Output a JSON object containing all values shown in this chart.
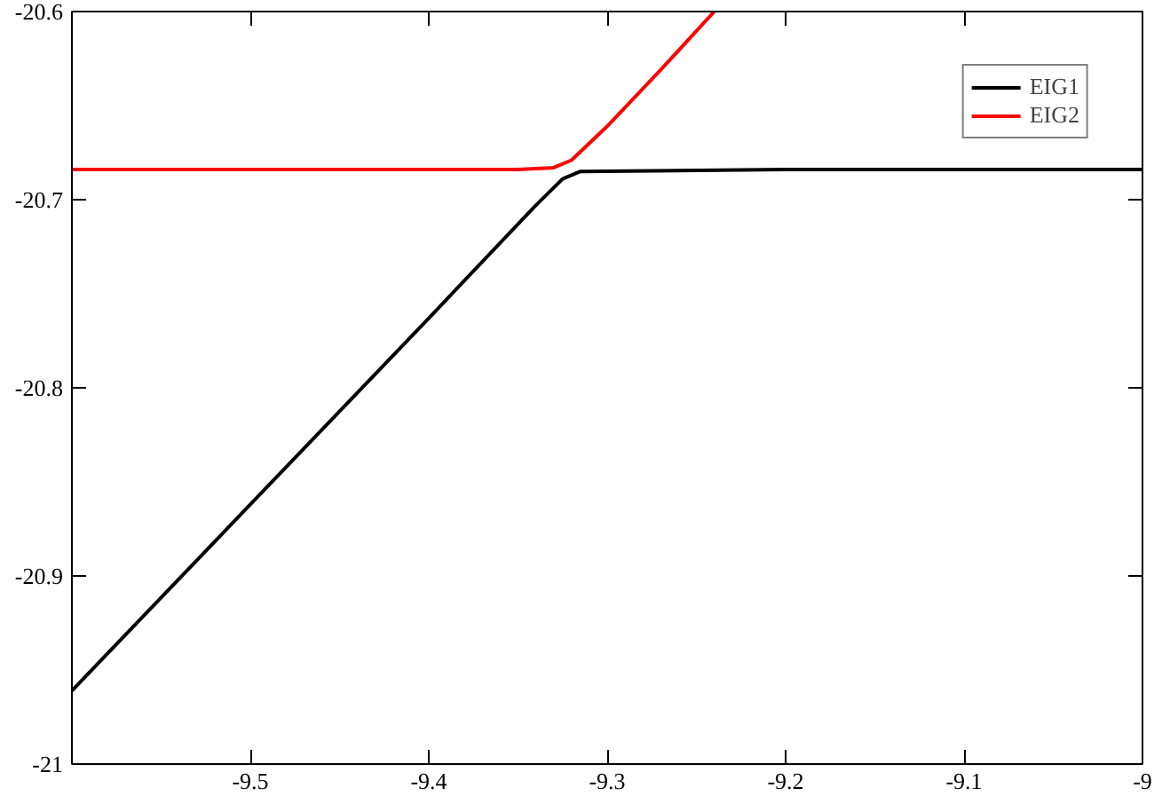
{
  "chart_data": {
    "type": "line",
    "xlim": [
      -9.6,
      -9
    ],
    "ylim": [
      -21,
      -20.6
    ],
    "xticks": [
      -9.5,
      -9.4,
      -9.3,
      -9.2,
      -9.1,
      -9
    ],
    "yticks": [
      -21,
      -20.9,
      -20.8,
      -20.7,
      -20.6
    ],
    "grid": false,
    "legend": "top right",
    "marker": "none",
    "line_style": "solid",
    "series": [
      {
        "name": "EIG1",
        "color": "#000000",
        "x": [
          -9.6,
          -9.5,
          -9.4,
          -9.34,
          -9.325,
          -9.315,
          -9.2,
          -9
        ],
        "values": [
          -20.961,
          -20.862,
          -20.763,
          -20.703,
          -20.689,
          -20.685,
          -20.684,
          -20.684
        ]
      },
      {
        "name": "EIG2",
        "color": "#ff0000",
        "x": [
          -9.6,
          -9.45,
          -9.35,
          -9.33,
          -9.32,
          -9.3,
          -9.27,
          -9.24
        ],
        "values": [
          -20.684,
          -20.684,
          -20.684,
          -20.683,
          -20.679,
          -20.661,
          -20.631,
          -20.6
        ]
      }
    ]
  }
}
